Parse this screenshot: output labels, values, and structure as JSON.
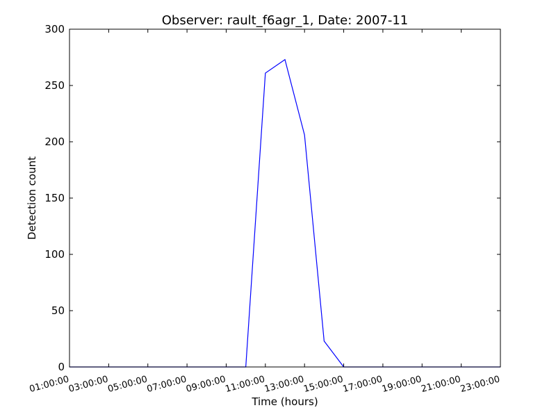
{
  "chart_data": {
    "type": "line",
    "title": "Observer: rault_f6agr_1, Date: 2007-11",
    "xlabel": "Time (hours)",
    "ylabel": "Detection count",
    "ylim": [
      0,
      300
    ],
    "xlim": [
      "01:00:00",
      "23:00:00"
    ],
    "y_ticks": [
      "0",
      "50",
      "100",
      "150",
      "200",
      "250",
      "300"
    ],
    "x_ticks": [
      "01:00:00",
      "03:00:00",
      "05:00:00",
      "07:00:00",
      "09:00:00",
      "11:00:00",
      "13:00:00",
      "15:00:00",
      "17:00:00",
      "19:00:00",
      "21:00:00",
      "23:00:00"
    ],
    "grid": false,
    "series": [
      {
        "color": "#0000ff",
        "x": [
          "01:00:00",
          "02:00:00",
          "03:00:00",
          "04:00:00",
          "05:00:00",
          "06:00:00",
          "07:00:00",
          "08:00:00",
          "09:00:00",
          "10:00:00",
          "11:00:00",
          "12:00:00",
          "13:00:00",
          "14:00:00",
          "15:00:00",
          "16:00:00",
          "17:00:00",
          "18:00:00",
          "19:00:00",
          "20:00:00",
          "21:00:00",
          "22:00:00",
          "23:00:00"
        ],
        "y": [
          0,
          0,
          0,
          0,
          0,
          0,
          0,
          0,
          0,
          0,
          261,
          273,
          206,
          23,
          0,
          0,
          0,
          0,
          0,
          0,
          0,
          0,
          0
        ]
      }
    ]
  }
}
